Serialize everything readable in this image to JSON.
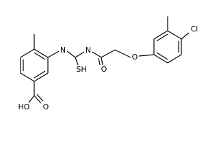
{
  "atom_labels": [
    "N",
    "N",
    "SH",
    "O",
    "O",
    "Cl",
    "HO",
    "O"
  ]
}
